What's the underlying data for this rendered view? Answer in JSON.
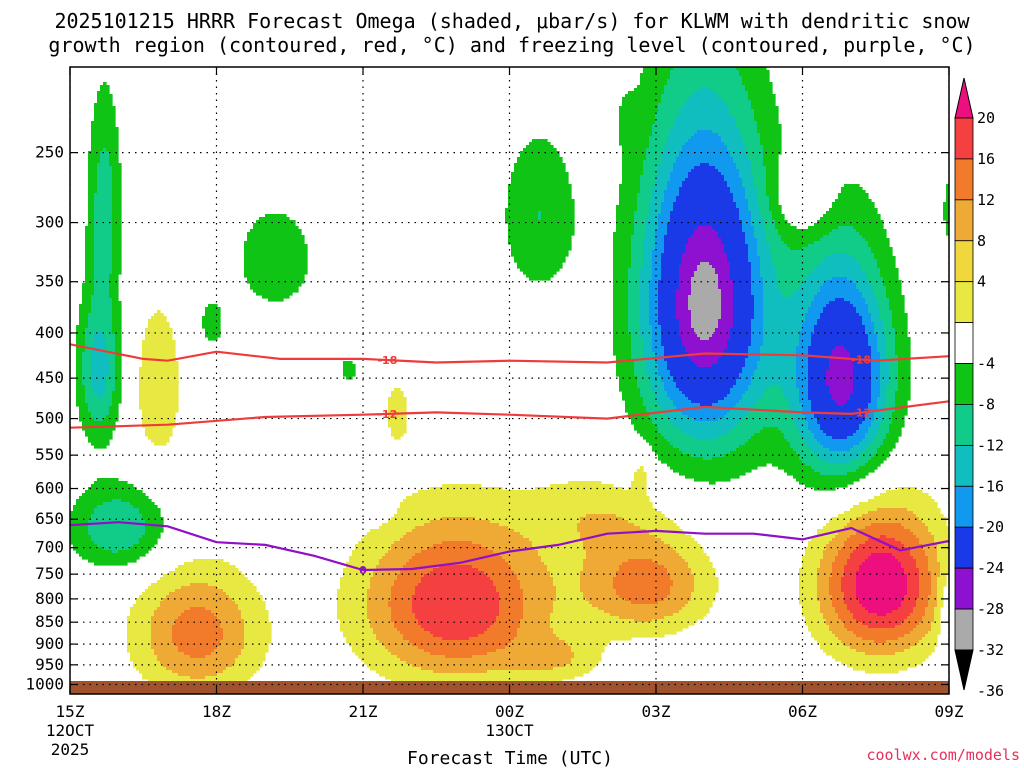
{
  "chart_data": {
    "type": "heatmap",
    "title_line1": "2025101215 HRRR Forecast Omega (shaded, μbar/s) for KLWM with dendritic snow",
    "title_line2": "growth region (contoured, red, °C) and freezing level (contoured, purple, °C)",
    "xlabel": "Forecast Time (UTC)",
    "ylabel": "",
    "x_ticks": [
      {
        "h": 0,
        "label": "15Z",
        "sub1": "12OCT",
        "sub2": "2025"
      },
      {
        "h": 3,
        "label": "18Z",
        "sub1": "",
        "sub2": ""
      },
      {
        "h": 6,
        "label": "21Z",
        "sub1": "",
        "sub2": ""
      },
      {
        "h": 9,
        "label": "00Z",
        "sub1": "13OCT",
        "sub2": ""
      },
      {
        "h": 12,
        "label": "03Z",
        "sub1": "",
        "sub2": ""
      },
      {
        "h": 15,
        "label": "06Z",
        "sub1": "",
        "sub2": ""
      },
      {
        "h": 18,
        "label": "09Z",
        "sub1": "",
        "sub2": ""
      }
    ],
    "xlim_hours": [
      0,
      18
    ],
    "y_ticks": [
      250,
      300,
      350,
      400,
      450,
      500,
      550,
      600,
      650,
      700,
      750,
      800,
      850,
      900,
      950,
      1000
    ],
    "ylim_mb": [
      200,
      1025
    ],
    "y_scale": "log",
    "grid": true,
    "colorbar": {
      "labels": [
        "20",
        "16",
        "12",
        "8",
        "4",
        "-4",
        "-8",
        "-12",
        "-16",
        "-20",
        "-24",
        "-28",
        "-32",
        "-36"
      ],
      "colors": [
        "#ed0f7e",
        "#f44040",
        "#f17b2a",
        "#eeaa34",
        "#f0d83c",
        "#e8e843",
        "#ffffff",
        "#0fc414",
        "#11cc89",
        "#10bec0",
        "#1099ee",
        "#1a3ae8",
        "#8e10d0",
        "#aaaaaa",
        "#000000"
      ]
    },
    "dgz_contours": [
      {
        "label": "-18",
        "points": [
          [
            0,
            412
          ],
          [
            1.5,
            428
          ],
          [
            2,
            430
          ],
          [
            3,
            420
          ],
          [
            4.3,
            428
          ],
          [
            6,
            428
          ],
          [
            7.5,
            432
          ],
          [
            9,
            430
          ],
          [
            11,
            432
          ],
          [
            13,
            422
          ],
          [
            15,
            424
          ],
          [
            16.5,
            430
          ],
          [
            18,
            425
          ]
        ]
      },
      {
        "label": "-12",
        "points": [
          [
            0,
            512
          ],
          [
            2,
            508
          ],
          [
            4,
            498
          ],
          [
            6,
            495
          ],
          [
            7.5,
            492
          ],
          [
            9,
            495
          ],
          [
            11,
            500
          ],
          [
            13,
            485
          ],
          [
            15,
            492
          ],
          [
            16,
            494
          ],
          [
            18,
            478
          ]
        ]
      }
    ],
    "freezing_contours": [
      {
        "label": "0",
        "points": [
          [
            0,
            660
          ],
          [
            1,
            655
          ],
          [
            2,
            662
          ],
          [
            3,
            690
          ],
          [
            4,
            695
          ],
          [
            5,
            715
          ],
          [
            6,
            742
          ],
          [
            7,
            740
          ],
          [
            8,
            728
          ],
          [
            9,
            707
          ],
          [
            10,
            695
          ],
          [
            11,
            675
          ],
          [
            12,
            670
          ],
          [
            13,
            675
          ],
          [
            14,
            675
          ],
          [
            15,
            685
          ],
          [
            16,
            665
          ],
          [
            17,
            705
          ],
          [
            18,
            688
          ]
        ]
      }
    ],
    "features": [
      {
        "sign": "down",
        "peak": 24,
        "t": 16.6,
        "p": 770,
        "rt": 1.25,
        "rp": 150
      },
      {
        "sign": "down",
        "peak": 20,
        "t": 7.9,
        "p": 810,
        "rt": 1.9,
        "rp": 170
      },
      {
        "sign": "down",
        "peak": 14,
        "t": 2.6,
        "p": 875,
        "rt": 1.3,
        "rp": 145
      },
      {
        "sign": "down",
        "peak": 14,
        "t": 11.8,
        "p": 770,
        "rt": 1.3,
        "rp": 100
      },
      {
        "sign": "down",
        "peak": 7,
        "t": 1.8,
        "p": 460,
        "rt": 0.55,
        "rp": 110
      },
      {
        "sign": "down",
        "peak": 7,
        "t": 15.0,
        "p": 280,
        "rt": 0.6,
        "rp": 28
      },
      {
        "sign": "down",
        "peak": 6,
        "t": 10.0,
        "p": 935,
        "rt": 0.9,
        "rp": 55
      },
      {
        "sign": "down",
        "peak": 6,
        "t": 10.8,
        "p": 640,
        "rt": 1.4,
        "rp": 70
      },
      {
        "sign": "down",
        "peak": 5,
        "t": 6.7,
        "p": 490,
        "rt": 0.35,
        "rp": 55
      },
      {
        "sign": "down",
        "peak": 5,
        "t": 11.7,
        "p": 575,
        "rt": 0.2,
        "rp": 35
      },
      {
        "sign": "up",
        "peak": 34,
        "t": 13.0,
        "p": 370,
        "rt": 1.3,
        "rp": 155
      },
      {
        "sign": "up",
        "peak": 30,
        "t": 15.8,
        "p": 450,
        "rt": 1.0,
        "rp": 130
      },
      {
        "sign": "up",
        "peak": 14,
        "t": 0.6,
        "p": 440,
        "rt": 0.45,
        "rp": 85
      },
      {
        "sign": "up",
        "peak": 12,
        "t": 1.0,
        "p": 665,
        "rt": 1.0,
        "rp": 75
      },
      {
        "sign": "up",
        "peak": 10,
        "t": 0.7,
        "p": 285,
        "rt": 0.35,
        "rp": 80
      },
      {
        "sign": "up",
        "peak": 8,
        "t": 9.6,
        "p": 295,
        "rt": 0.8,
        "rp": 65
      },
      {
        "sign": "up",
        "peak": 8,
        "t": 4.2,
        "p": 330,
        "rt": 0.8,
        "rp": 45
      },
      {
        "sign": "up",
        "peak": 6,
        "t": 2.9,
        "p": 390,
        "rt": 0.3,
        "rp": 30
      },
      {
        "sign": "up",
        "peak": 5,
        "t": 6.2,
        "p": 630,
        "rt": 0.35,
        "rp": 25
      },
      {
        "sign": "up",
        "peak": 5,
        "t": 5.7,
        "p": 440,
        "rt": 0.3,
        "rp": 22
      },
      {
        "sign": "up",
        "peak": 4,
        "t": 11.4,
        "p": 230,
        "rt": 0.18,
        "rp": 15
      },
      {
        "sign": "up",
        "peak": 5,
        "t": 18.0,
        "p": 290,
        "rt": 0.2,
        "rp": 40
      },
      {
        "sign": "up",
        "peak": 6,
        "t": 18.0,
        "p": 820,
        "rt": 0.25,
        "rp": 90
      }
    ]
  },
  "credit": "coolwx.com/models"
}
